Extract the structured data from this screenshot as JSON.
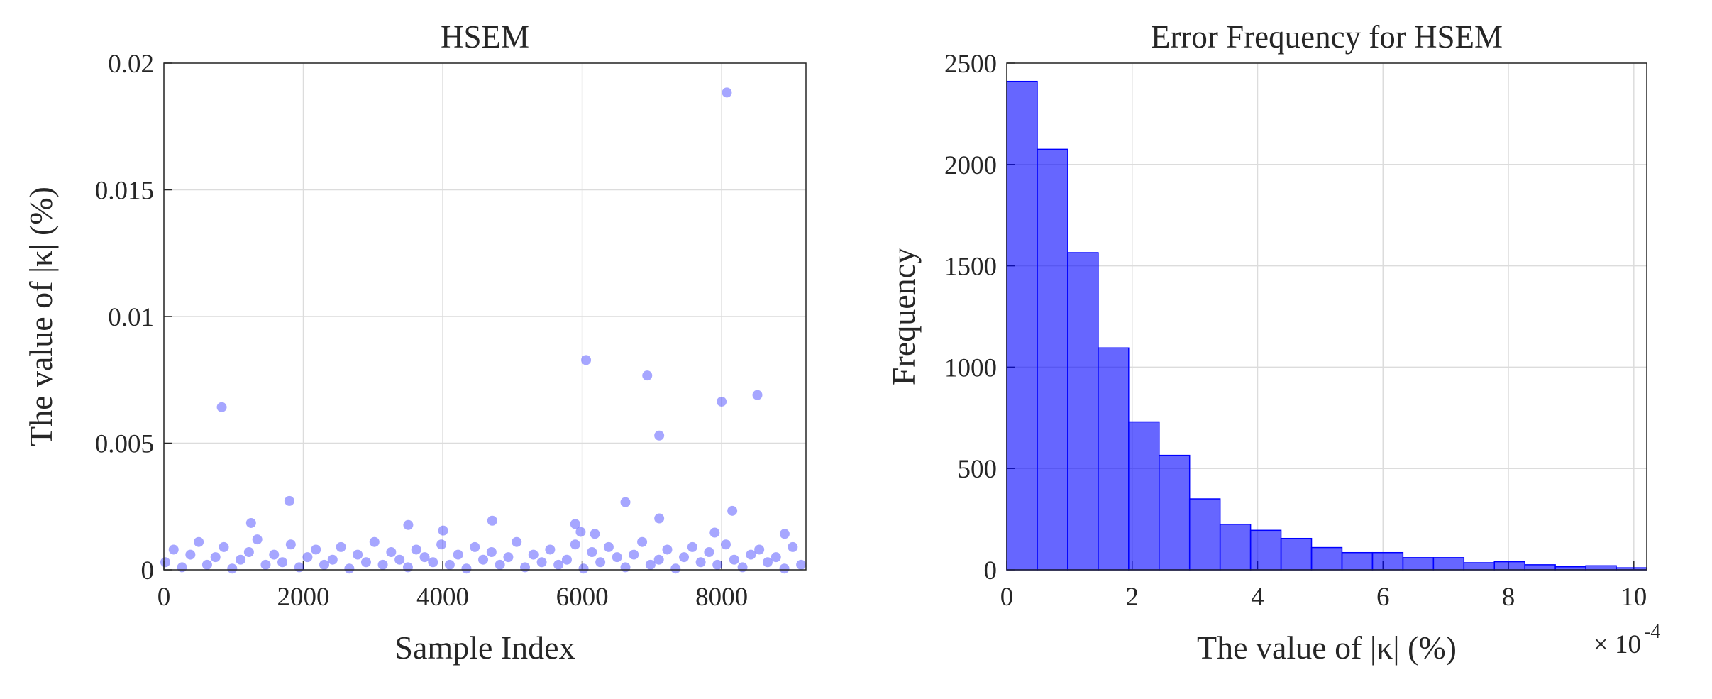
{
  "chart_data": [
    {
      "type": "scatter",
      "title": "HSEM",
      "x_label": "Sample Index",
      "y_label": "The value of |κ| (%)",
      "color": "#0000ff",
      "grid": true,
      "xlim": [
        0,
        9210
      ],
      "ylim": [
        0,
        0.02
      ],
      "xticks": [
        0,
        2000,
        4000,
        6000,
        8000
      ],
      "yticks": [
        0,
        0.005,
        0.01,
        0.015,
        0.02
      ],
      "x": [
        20,
        140,
        260,
        380,
        500,
        620,
        740,
        860,
        980,
        1100,
        1220,
        1340,
        1460,
        1580,
        1700,
        1820,
        1940,
        2060,
        2180,
        2300,
        2420,
        2540,
        2660,
        2780,
        2900,
        3020,
        3140,
        3260,
        3380,
        3500,
        3620,
        3740,
        3860,
        3980,
        4100,
        4220,
        4340,
        4460,
        4580,
        4700,
        4820,
        4940,
        5060,
        5180,
        5300,
        5420,
        5540,
        5660,
        5780,
        5900,
        6020,
        6140,
        6260,
        6380,
        6500,
        6620,
        6740,
        6860,
        6980,
        7100,
        7220,
        7340,
        7460,
        7580,
        7700,
        7820,
        7940,
        8060,
        8180,
        8300,
        8420,
        8540,
        8660,
        8780,
        8900,
        9020,
        9140,
        830,
        6056,
        6933,
        7105,
        8000,
        8075,
        8513,
        1800,
        6620,
        8153,
        7105,
        4710,
        1250,
        3505,
        5900,
        4005,
        7900,
        8904,
        6182,
        5978
      ],
      "y": [
        0.0003,
        0.0008,
        0.0001,
        0.0006,
        0.0011,
        0.0002,
        0.0005,
        0.0009,
        5e-05,
        0.0004,
        0.0007,
        0.0012,
        0.0002,
        0.0006,
        0.0003,
        0.001,
        0.0001,
        0.0005,
        0.0008,
        0.0002,
        0.0004,
        0.0009,
        5e-05,
        0.0006,
        0.0003,
        0.0011,
        0.0002,
        0.0007,
        0.0004,
        0.0001,
        0.0008,
        0.0005,
        0.0003,
        0.001,
        0.0002,
        0.0006,
        5e-05,
        0.0009,
        0.0004,
        0.0007,
        0.0002,
        0.0005,
        0.0011,
        0.0001,
        0.0006,
        0.0003,
        0.0008,
        0.0002,
        0.0004,
        0.001,
        5e-05,
        0.0007,
        0.0003,
        0.0009,
        0.0005,
        0.0001,
        0.0006,
        0.0011,
        0.0002,
        0.0004,
        0.0008,
        5e-05,
        0.0005,
        0.0009,
        0.0003,
        0.0007,
        0.0002,
        0.001,
        0.0004,
        0.0001,
        0.0006,
        0.0008,
        0.0003,
        0.0005,
        5e-05,
        0.0009,
        0.0002,
        0.00642,
        0.00828,
        0.00767,
        0.0053,
        0.00664,
        0.01884,
        0.0069,
        0.00272,
        0.00267,
        0.00233,
        0.00203,
        0.00194,
        0.00185,
        0.00177,
        0.00181,
        0.00155,
        0.00147,
        0.00142,
        0.00142,
        0.0015
      ]
    },
    {
      "type": "histogram",
      "title": "Error Frequency for HSEM",
      "x_label": "The value of |κ| (%)",
      "y_label": "Frequency",
      "x_exponent": {
        "base": "× 10",
        "power": "-4"
      },
      "color": "#0000ff",
      "grid": true,
      "xlim": [
        0,
        0.0010206
      ],
      "ylim": [
        0,
        2500
      ],
      "xticks": [
        {
          "value": 0,
          "label": "0"
        },
        {
          "value": 0.0002,
          "label": "2"
        },
        {
          "value": 0.0004,
          "label": "4"
        },
        {
          "value": 0.0006,
          "label": "6"
        },
        {
          "value": 0.0008,
          "label": "8"
        },
        {
          "value": 0.001,
          "label": "10"
        }
      ],
      "yticks": [
        0,
        500,
        1000,
        1500,
        2000,
        2500
      ],
      "bins": [
        0,
        4.86e-05,
        9.72e-05,
        0.0001458,
        0.0001944,
        0.000243,
        0.0002916,
        0.0003402,
        0.0003888,
        0.0004374,
        0.000486,
        0.0005346,
        0.0005832,
        0.0006318,
        0.0006804,
        0.000729,
        0.0007776,
        0.0008262,
        0.0008748,
        0.0009234,
        0.000972,
        0.0010206
      ],
      "counts": [
        2410,
        2075,
        1565,
        1095,
        730,
        565,
        350,
        225,
        195,
        155,
        110,
        85,
        85,
        60,
        60,
        35,
        40,
        25,
        15,
        20,
        10
      ]
    }
  ]
}
